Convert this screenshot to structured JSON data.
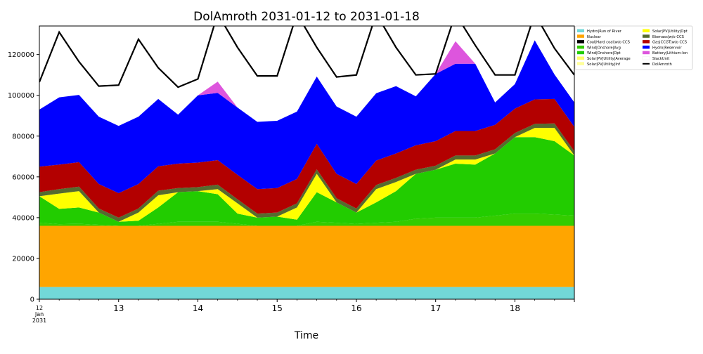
{
  "chart_data": {
    "type": "area",
    "stacked": true,
    "title": "DolAmroth 2031-01-12 to 2031-01-18",
    "xlabel": "Time",
    "ylabel": "",
    "x_start": "2031-01-12 00:00",
    "x_step_hours": 6,
    "x": [
      "2031-01-12 00:00",
      "2031-01-12 06:00",
      "2031-01-12 12:00",
      "2031-01-12 18:00",
      "2031-01-13 00:00",
      "2031-01-13 06:00",
      "2031-01-13 12:00",
      "2031-01-13 18:00",
      "2031-01-14 00:00",
      "2031-01-14 06:00",
      "2031-01-14 12:00",
      "2031-01-14 18:00",
      "2031-01-15 00:00",
      "2031-01-15 06:00",
      "2031-01-15 12:00",
      "2031-01-15 18:00",
      "2031-01-16 00:00",
      "2031-01-16 06:00",
      "2031-01-16 12:00",
      "2031-01-16 18:00",
      "2031-01-17 00:00",
      "2031-01-17 06:00",
      "2031-01-17 12:00",
      "2031-01-17 18:00",
      "2031-01-18 00:00",
      "2031-01-18 06:00",
      "2031-01-18 12:00",
      "2031-01-18 18:00"
    ],
    "ylim": [
      0,
      134000
    ],
    "yticks": [
      0,
      20000,
      40000,
      60000,
      80000,
      100000,
      120000
    ],
    "xticks": [
      {
        "hour": 0,
        "lines": [
          "12",
          "Jan",
          "2031"
        ]
      },
      {
        "hour": 24,
        "lines": [
          "13"
        ]
      },
      {
        "hour": 48,
        "lines": [
          "14"
        ]
      },
      {
        "hour": 72,
        "lines": [
          "15"
        ]
      },
      {
        "hour": 96,
        "lines": [
          "16"
        ]
      },
      {
        "hour": 120,
        "lines": [
          "17"
        ]
      },
      {
        "hour": 144,
        "lines": [
          "18"
        ]
      }
    ],
    "x_end_hour": 162,
    "series": [
      {
        "name": "Hydro|Run of River",
        "color": "#72d8d8",
        "values": [
          6000,
          6000,
          6000,
          6000,
          6000,
          6000,
          6000,
          6000,
          6000,
          6000,
          6000,
          6000,
          6000,
          6000,
          6000,
          6000,
          6000,
          6000,
          6000,
          6000,
          6000,
          6000,
          6000,
          6000,
          6000,
          6000,
          6000,
          6000
        ]
      },
      {
        "name": "Nuclear",
        "color": "#ffa500",
        "values": [
          30000,
          30000,
          30000,
          30000,
          30000,
          30000,
          30000,
          30000,
          30000,
          30000,
          30000,
          30000,
          30000,
          30000,
          30000,
          30000,
          30000,
          30000,
          30000,
          30000,
          30000,
          30000,
          30000,
          30000,
          30000,
          30000,
          30000,
          30000
        ]
      },
      {
        "name": "Coal|Hard coal|w/o CCS",
        "color": "#000000",
        "values": [
          0,
          0,
          0,
          0,
          0,
          0,
          0,
          0,
          0,
          0,
          0,
          0,
          0,
          0,
          0,
          0,
          0,
          0,
          0,
          0,
          0,
          0,
          0,
          0,
          0,
          0,
          0,
          0
        ]
      },
      {
        "name": "Wind|Onshore|Avg",
        "color": "#33cc00",
        "values": [
          1500,
          800,
          1000,
          500,
          0,
          0,
          1000,
          2000,
          2000,
          2000,
          1000,
          0,
          0,
          0,
          2000,
          1500,
          1000,
          1500,
          2000,
          3500,
          4000,
          4000,
          4000,
          5000,
          6000,
          6000,
          5500,
          5000
        ]
      },
      {
        "name": "Wind|Onshore|Opt",
        "color": "#22cc00",
        "values": [
          13000,
          7500,
          8000,
          6000,
          2000,
          2500,
          8000,
          14500,
          15000,
          13500,
          5000,
          4000,
          4500,
          3000,
          14500,
          10000,
          5500,
          10000,
          15000,
          22000,
          23500,
          26500,
          26000,
          30500,
          37500,
          37500,
          36000,
          29500
        ]
      },
      {
        "name": "Solar|PV|Utility|Average",
        "color": "#ffff66",
        "values": [
          0,
          0,
          0,
          0,
          0,
          0,
          0,
          0,
          0,
          0,
          0,
          0,
          0,
          0,
          0,
          0,
          0,
          0,
          0,
          0,
          0,
          0,
          0,
          0,
          0,
          0,
          0,
          0
        ]
      },
      {
        "name": "Solar|PV|Utility|Inf",
        "color": "#ffff99",
        "values": [
          0,
          0,
          0,
          0,
          0,
          0,
          0,
          0,
          0,
          0,
          0,
          0,
          0,
          0,
          0,
          0,
          0,
          0,
          0,
          0,
          0,
          0,
          0,
          0,
          0,
          0,
          0,
          0
        ]
      },
      {
        "name": "Solar|PV|Utility|Opt",
        "color": "#ffff00",
        "values": [
          0,
          7500,
          8000,
          0,
          0,
          4000,
          6000,
          0,
          0,
          2500,
          5000,
          0,
          0,
          6000,
          9000,
          0,
          0,
          6500,
          4500,
          0,
          0,
          2000,
          2500,
          0,
          0,
          4500,
          6500,
          0
        ]
      },
      {
        "name": "Biomass|w/o CCS",
        "color": "#556b2f",
        "values": [
          2000,
          2200,
          2200,
          2000,
          2000,
          2000,
          2200,
          2000,
          2000,
          2200,
          2000,
          2000,
          2000,
          2000,
          2200,
          2000,
          2000,
          2000,
          2000,
          2000,
          2000,
          2000,
          2000,
          2000,
          2000,
          2000,
          2200,
          2000
        ]
      },
      {
        "name": "Gas|CCGT|w/o CCS",
        "color": "#b30000",
        "values": [
          12500,
          12000,
          12000,
          12000,
          12000,
          12000,
          12000,
          12000,
          12000,
          12000,
          12000,
          12000,
          12000,
          12000,
          12500,
          12000,
          12000,
          12000,
          12000,
          12000,
          12000,
          12000,
          12000,
          12000,
          12000,
          12000,
          12000,
          12000
        ]
      },
      {
        "name": "Hydro|Reservoir",
        "color": "#0000ff",
        "values": [
          28000,
          33000,
          33000,
          33000,
          33000,
          33000,
          33000,
          24000,
          33000,
          33000,
          33000,
          33000,
          33000,
          33000,
          33000,
          33000,
          33000,
          33000,
          33000,
          24000,
          33000,
          33000,
          33000,
          11000,
          12000,
          29000,
          12000,
          12000
        ]
      },
      {
        "name": "Battery|Lithium-Ion",
        "color": "#dd55dd",
        "values": [
          0,
          0,
          0,
          0,
          0,
          0,
          0,
          0,
          0,
          5500,
          0,
          0,
          0,
          0,
          0,
          0,
          0,
          0,
          0,
          0,
          0,
          11000,
          0,
          0,
          0,
          0,
          0,
          0
        ]
      },
      {
        "name": "SlackUnit",
        "color": "#ffffff",
        "values": [
          0,
          0,
          0,
          0,
          0,
          0,
          0,
          0,
          0,
          0,
          0,
          0,
          0,
          0,
          0,
          0,
          0,
          0,
          0,
          0,
          0,
          0,
          0,
          0,
          0,
          0,
          0,
          0
        ]
      }
    ],
    "line": {
      "name": "DolAmroth",
      "color": "#000000",
      "values": [
        106500,
        131000,
        116500,
        104500,
        105000,
        127500,
        113500,
        104000,
        108000,
        140000,
        123500,
        109500,
        109500,
        140000,
        123500,
        109000,
        110000,
        140000,
        123500,
        110000,
        110500,
        140000,
        124500,
        110000,
        110000,
        140000,
        123000,
        110000
      ]
    },
    "legend": {
      "position": "right",
      "columns": 2
    },
    "grid": false
  }
}
